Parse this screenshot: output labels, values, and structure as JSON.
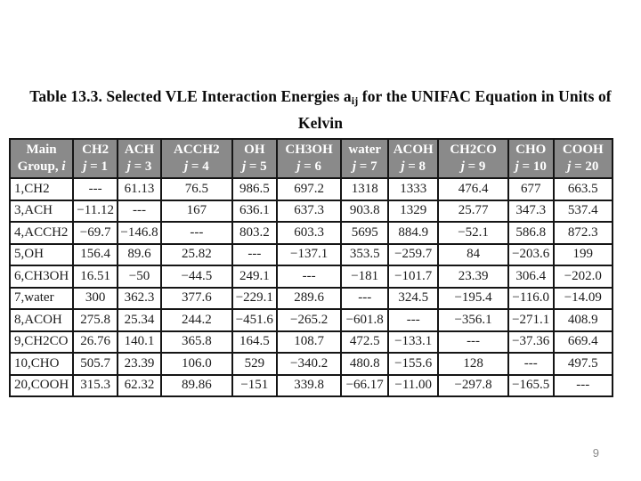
{
  "slide": {
    "title": {
      "line1_prefix": "Table 13.3. Selected VLE Interaction Energies a",
      "line1_sub": "ij",
      "line1_suffix": " for the UNIFAC Equation in Units of",
      "line2": "Kelvin"
    },
    "page_number": "9"
  },
  "table": {
    "corner_header": {
      "line1": "Main",
      "line2_text": "Group, ",
      "line2_italic": "i"
    },
    "columns": [
      {
        "name": "CH2",
        "j_italic": "j",
        "j_rest": " = 1"
      },
      {
        "name": "ACH",
        "j_italic": "j",
        "j_rest": " = 3"
      },
      {
        "name": "ACCH2",
        "j_italic": "j",
        "j_rest": " = 4"
      },
      {
        "name": "OH",
        "j_italic": "j",
        "j_rest": " = 5"
      },
      {
        "name": "CH3OH",
        "j_italic": "j",
        "j_rest": " = 6"
      },
      {
        "name": "water",
        "j_italic": "j",
        "j_rest": " = 7"
      },
      {
        "name": "ACOH",
        "j_italic": "j",
        "j_rest": " = 8"
      },
      {
        "name": "CH2CO",
        "j_italic": "j",
        "j_rest": " = 9"
      },
      {
        "name": "CHO",
        "j_italic": "j",
        "j_rest": " = 10"
      },
      {
        "name": "COOH",
        "j_italic": "j",
        "j_rest": " = 20"
      }
    ],
    "rows": [
      {
        "label": "1,CH2",
        "values": [
          "---",
          "61.13",
          "76.5",
          "986.5",
          "697.2",
          "1318",
          "1333",
          "476.4",
          "677",
          "663.5"
        ]
      },
      {
        "label": "3,ACH",
        "values": [
          "−11.12",
          "---",
          "167",
          "636.1",
          "637.3",
          "903.8",
          "1329",
          "25.77",
          "347.3",
          "537.4"
        ]
      },
      {
        "label": "4,ACCH2",
        "values": [
          "−69.7",
          "−146.8",
          "---",
          "803.2",
          "603.3",
          "5695",
          "884.9",
          "−52.1",
          "586.8",
          "872.3"
        ]
      },
      {
        "label": "5,OH",
        "values": [
          "156.4",
          "89.6",
          "25.82",
          "---",
          "−137.1",
          "353.5",
          "−259.7",
          "84",
          "−203.6",
          "199"
        ]
      },
      {
        "label": "6,CH3OH",
        "values": [
          "16.51",
          "−50",
          "−44.5",
          "249.1",
          "---",
          "−181",
          "−101.7",
          "23.39",
          "306.4",
          "−202.0"
        ]
      },
      {
        "label": "7,water",
        "values": [
          "300",
          "362.3",
          "377.6",
          "−229.1",
          "289.6",
          "---",
          "324.5",
          "−195.4",
          "−116.0",
          "−14.09"
        ]
      },
      {
        "label": "8,ACOH",
        "values": [
          "275.8",
          "25.34",
          "244.2",
          "−451.6",
          "−265.2",
          "−601.8",
          "---",
          "−356.1",
          "−271.1",
          "408.9"
        ]
      },
      {
        "label": "9,CH2CO",
        "values": [
          "26.76",
          "140.1",
          "365.8",
          "164.5",
          "108.7",
          "472.5",
          "−133.1",
          "---",
          "−37.36",
          "669.4"
        ]
      },
      {
        "label": "10,CHO",
        "values": [
          "505.7",
          "23.39",
          "106.0",
          "529",
          "−340.2",
          "480.8",
          "−155.6",
          "128",
          "---",
          "497.5"
        ]
      },
      {
        "label": "20,COOH",
        "values": [
          "315.3",
          "62.32",
          "89.86",
          "−151",
          "339.8",
          "−66.17",
          "−11.00",
          "−297.8",
          "−165.5",
          "---"
        ]
      }
    ],
    "colors": {
      "header_bg": "#8a8a8a",
      "header_text": "#ffffff",
      "border": "#151515",
      "body_text": "#1c1c1c"
    }
  }
}
